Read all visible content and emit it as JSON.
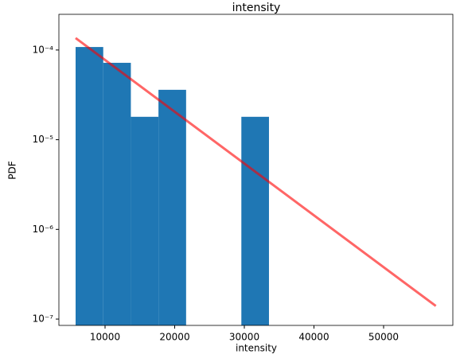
{
  "chart_data": {
    "type": "histogram",
    "title": "intensity",
    "xlabel": "intensity",
    "ylabel": "PDF",
    "log_y": true,
    "bins": [
      5771,
      9738,
      13705,
      17672,
      21639,
      25606,
      29573,
      33540
    ],
    "values": [
      0.000108,
      7.2e-05,
      1.8e-05,
      3.6e-05,
      0,
      0,
      1.8e-05
    ],
    "color": "#1f77b4",
    "fit_line": {
      "x": [
        5771,
        57500
      ],
      "values": [
        0.000136,
        1.4e-07
      ],
      "color": "#ff0000"
    },
    "xlim": [
      3371,
      59943
    ],
    "ylim": [
      8.5e-08,
      0.00025
    ],
    "xticks": [
      10000,
      20000,
      30000,
      40000,
      50000
    ],
    "yticks": [
      {
        "value": 0.0001,
        "label": "10⁻⁴"
      },
      {
        "value": 1e-05,
        "label": "10⁻⁵"
      },
      {
        "value": 1e-06,
        "label": "10⁻⁶"
      },
      {
        "value": 1e-07,
        "label": "10⁻⁷"
      }
    ]
  }
}
